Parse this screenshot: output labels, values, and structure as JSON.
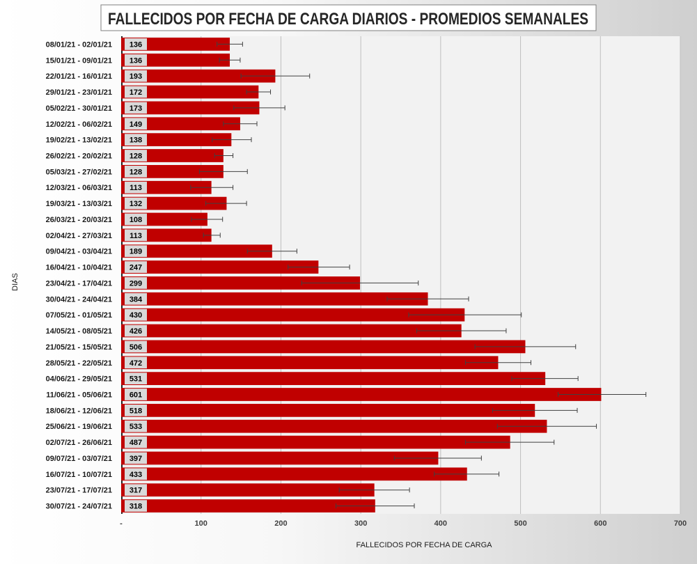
{
  "chart_data": {
    "type": "bar",
    "orientation": "horizontal",
    "title": "FALLECIDOS POR FECHA DE CARGA DIARIOS - PROMEDIOS SEMANALES",
    "xlabel": "FALLECIDOS POR FECHA DE CARGA",
    "ylabel": "DIAS",
    "xlim": [
      0,
      700
    ],
    "xticks": [
      0,
      100,
      200,
      300,
      400,
      500,
      600,
      700
    ],
    "xtick_labels": [
      "-",
      "100",
      "200",
      "300",
      "400",
      "500",
      "600",
      "700"
    ],
    "grid": true,
    "bar_color": "#c00000",
    "categories": [
      "08/01/21 - 02/01/21",
      "15/01/21 - 09/01/21",
      "22/01/21 - 16/01/21",
      "29/01/21 - 23/01/21",
      "05/02/21 - 30/01/21",
      "12/02/21 - 06/02/21",
      "19/02/21 - 13/02/21",
      "26/02/21 - 20/02/21",
      "05/03/21 - 27/02/21",
      "12/03/21 - 06/03/21",
      "19/03/21 - 13/03/21",
      "26/03/21 - 20/03/21",
      "02/04/21 - 27/03/21",
      "09/04/21 - 03/04/21",
      "16/04/21 - 10/04/21",
      "23/04/21 - 17/04/21",
      "30/04/21 - 24/04/21",
      "07/05/21 - 01/05/21",
      "14/05/21 - 08/05/21",
      "21/05/21 - 15/05/21",
      "28/05/21 - 22/05/21",
      "04/06/21 - 29/05/21",
      "11/06/21 - 05/06/21",
      "18/06/21 - 12/06/21",
      "25/06/21 - 19/06/21",
      "02/07/21 - 26/06/21",
      "09/07/21 - 03/07/21",
      "16/07/21 - 10/07/21",
      "23/07/21 - 17/07/21",
      "30/07/21 - 24/07/21"
    ],
    "values": [
      136,
      136,
      193,
      172,
      173,
      149,
      138,
      128,
      128,
      113,
      132,
      108,
      113,
      189,
      247,
      299,
      384,
      430,
      426,
      506,
      472,
      531,
      601,
      518,
      533,
      487,
      397,
      433,
      317,
      318
    ],
    "error_low": [
      120,
      123,
      150,
      157,
      141,
      128,
      114,
      117,
      98,
      87,
      106,
      88,
      103,
      158,
      209,
      226,
      333,
      360,
      370,
      443,
      431,
      489,
      547,
      465,
      471,
      431,
      342,
      392,
      273,
      269
    ],
    "error_high": [
      152,
      149,
      236,
      187,
      205,
      170,
      163,
      140,
      158,
      140,
      157,
      127,
      124,
      220,
      286,
      372,
      435,
      501,
      482,
      569,
      513,
      572,
      657,
      571,
      595,
      542,
      451,
      473,
      361,
      367
    ]
  }
}
